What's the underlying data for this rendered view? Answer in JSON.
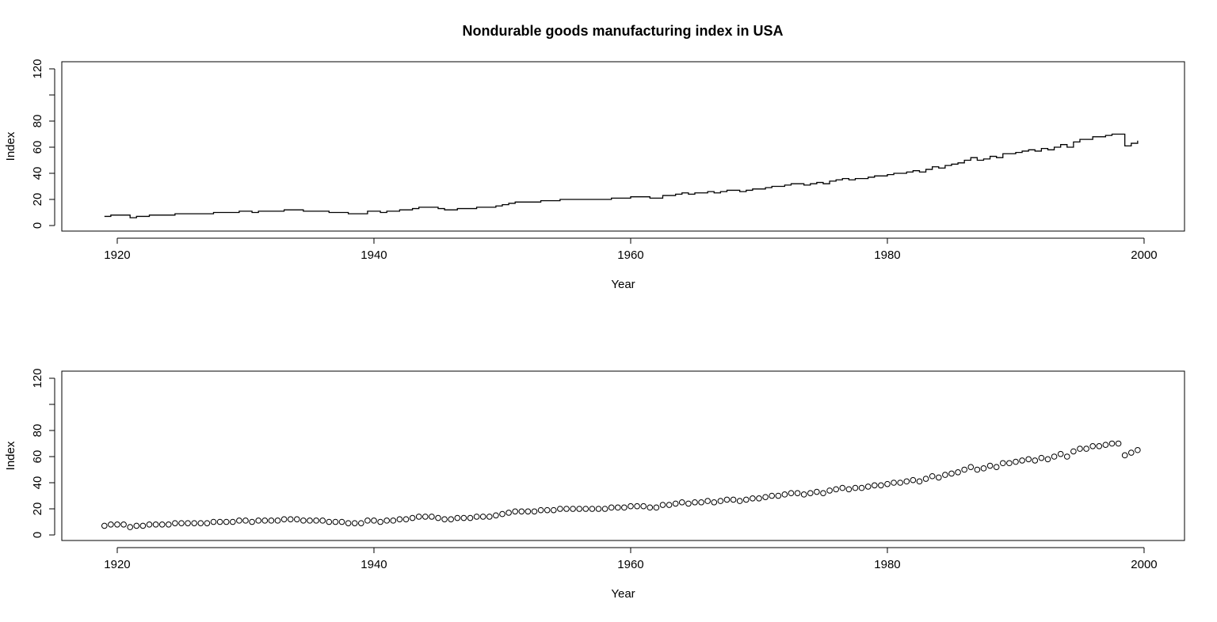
{
  "chart_data": [
    {
      "type": "line",
      "title": "Nondurable goods manufacturing index in USA",
      "x_label": "Year",
      "y_label": "Index",
      "color": "#000000",
      "xlim": [
        1915.68,
        2003.15
      ],
      "xticks": [
        1920,
        1940,
        1960,
        1980,
        2000
      ],
      "ylim": [
        -4.24,
        125.45
      ],
      "yticks": [
        0,
        20,
        40,
        60,
        80,
        {
          "value": 100,
          "label": null
        },
        120
      ],
      "x": [
        1919,
        1919.5,
        1920,
        1920.5,
        1921,
        1921.5,
        1922,
        1922.5,
        1923,
        1923.5,
        1924,
        1924.5,
        1925,
        1925.5,
        1926,
        1926.5,
        1927,
        1927.5,
        1928,
        1928.5,
        1929,
        1929.5,
        1930,
        1930.5,
        1931,
        1931.5,
        1932,
        1932.5,
        1933,
        1933.5,
        1934,
        1934.5,
        1935,
        1935.5,
        1936,
        1936.5,
        1937,
        1937.5,
        1938,
        1938.5,
        1939,
        1939.5,
        1940,
        1940.5,
        1941,
        1941.5,
        1942,
        1942.5,
        1943,
        1943.5,
        1944,
        1944.5,
        1945,
        1945.5,
        1946,
        1946.5,
        1947,
        1947.5,
        1948,
        1948.5,
        1949,
        1949.5,
        1950,
        1950.5,
        1951,
        1951.5,
        1952,
        1952.5,
        1953,
        1953.5,
        1954,
        1954.5,
        1955,
        1955.5,
        1956,
        1956.5,
        1957,
        1957.5,
        1958,
        1958.5,
        1959,
        1959.5,
        1960,
        1960.5,
        1961,
        1961.5,
        1962,
        1962.5,
        1963,
        1963.5,
        1964,
        1964.5,
        1965,
        1965.5,
        1966,
        1966.5,
        1967,
        1967.5,
        1968,
        1968.5,
        1969,
        1969.5,
        1970,
        1970.5,
        1971,
        1971.5,
        1972,
        1972.5,
        1973,
        1973.5,
        1974,
        1974.5,
        1975,
        1975.5,
        1976,
        1976.5,
        1977,
        1977.5,
        1978,
        1978.5,
        1979,
        1979.5,
        1980,
        1980.5,
        1981,
        1981.5,
        1982,
        1982.5,
        1983,
        1983.5,
        1984,
        1984.5,
        1985,
        1985.5,
        1986,
        1986.5,
        1987,
        1987.5,
        1988,
        1988.5,
        1989,
        1989.5,
        1990,
        1990.5,
        1991,
        1991.5,
        1992,
        1992.5,
        1993,
        1993.5,
        1994,
        1994.5,
        1995,
        1995.5,
        1996,
        1996.5,
        1997,
        1997.5,
        1998,
        1998.5,
        1999,
        1999.5
      ],
      "values": [
        7,
        8,
        8,
        8,
        6,
        7,
        7,
        8,
        8,
        8,
        8,
        9,
        9,
        9,
        9,
        9,
        9,
        10,
        10,
        10,
        10,
        11,
        11,
        10,
        11,
        11,
        11,
        11,
        12,
        12,
        12,
        11,
        11,
        11,
        11,
        10,
        10,
        10,
        9,
        9,
        9,
        11,
        11,
        10,
        11,
        11,
        12,
        12,
        13,
        14,
        14,
        14,
        13,
        12,
        12,
        13,
        13,
        13,
        14,
        14,
        14,
        15,
        16,
        17,
        18,
        18,
        18,
        18,
        19,
        19,
        19,
        20,
        20,
        20,
        20,
        20,
        20,
        20,
        20,
        21,
        21,
        21,
        22,
        22,
        22,
        21,
        21,
        23,
        23,
        24,
        25,
        24,
        25,
        25,
        26,
        25,
        26,
        27,
        27,
        26,
        27,
        28,
        28,
        29,
        30,
        30,
        31,
        32,
        32,
        31,
        32,
        33,
        32,
        34,
        35,
        36,
        35,
        36,
        36,
        37,
        38,
        38,
        39,
        40,
        40,
        41,
        42,
        41,
        43,
        45,
        44,
        46,
        47,
        48,
        50,
        52,
        50,
        51,
        53,
        52,
        55,
        55,
        56,
        57,
        58,
        57,
        59,
        58,
        60,
        62,
        60,
        64,
        66,
        66,
        68,
        68,
        69,
        70,
        70,
        61,
        63,
        65
      ]
    },
    {
      "type": "scatter",
      "x_label": "Year",
      "y_label": "Index",
      "color": "#000000",
      "xlim": [
        1915.68,
        2003.15
      ],
      "xticks": [
        1920,
        1940,
        1960,
        1980,
        2000
      ],
      "ylim": [
        -4.24,
        125.45
      ],
      "yticks": [
        0,
        20,
        40,
        60,
        80,
        {
          "value": 100,
          "label": null
        },
        120
      ],
      "x": [
        1919,
        1919.5,
        1920,
        1920.5,
        1921,
        1921.5,
        1922,
        1922.5,
        1923,
        1923.5,
        1924,
        1924.5,
        1925,
        1925.5,
        1926,
        1926.5,
        1927,
        1927.5,
        1928,
        1928.5,
        1929,
        1929.5,
        1930,
        1930.5,
        1931,
        1931.5,
        1932,
        1932.5,
        1933,
        1933.5,
        1934,
        1934.5,
        1935,
        1935.5,
        1936,
        1936.5,
        1937,
        1937.5,
        1938,
        1938.5,
        1939,
        1939.5,
        1940,
        1940.5,
        1941,
        1941.5,
        1942,
        1942.5,
        1943,
        1943.5,
        1944,
        1944.5,
        1945,
        1945.5,
        1946,
        1946.5,
        1947,
        1947.5,
        1948,
        1948.5,
        1949,
        1949.5,
        1950,
        1950.5,
        1951,
        1951.5,
        1952,
        1952.5,
        1953,
        1953.5,
        1954,
        1954.5,
        1955,
        1955.5,
        1956,
        1956.5,
        1957,
        1957.5,
        1958,
        1958.5,
        1959,
        1959.5,
        1960,
        1960.5,
        1961,
        1961.5,
        1962,
        1962.5,
        1963,
        1963.5,
        1964,
        1964.5,
        1965,
        1965.5,
        1966,
        1966.5,
        1967,
        1967.5,
        1968,
        1968.5,
        1969,
        1969.5,
        1970,
        1970.5,
        1971,
        1971.5,
        1972,
        1972.5,
        1973,
        1973.5,
        1974,
        1974.5,
        1975,
        1975.5,
        1976,
        1976.5,
        1977,
        1977.5,
        1978,
        1978.5,
        1979,
        1979.5,
        1980,
        1980.5,
        1981,
        1981.5,
        1982,
        1982.5,
        1983,
        1983.5,
        1984,
        1984.5,
        1985,
        1985.5,
        1986,
        1986.5,
        1987,
        1987.5,
        1988,
        1988.5,
        1989,
        1989.5,
        1990,
        1990.5,
        1991,
        1991.5,
        1992,
        1992.5,
        1993,
        1993.5,
        1994,
        1994.5,
        1995,
        1995.5,
        1996,
        1996.5,
        1997,
        1997.5,
        1998,
        1998.5,
        1999,
        1999.5
      ],
      "values": [
        7,
        8,
        8,
        8,
        6,
        7,
        7,
        8,
        8,
        8,
        8,
        9,
        9,
        9,
        9,
        9,
        9,
        10,
        10,
        10,
        10,
        11,
        11,
        10,
        11,
        11,
        11,
        11,
        12,
        12,
        12,
        11,
        11,
        11,
        11,
        10,
        10,
        10,
        9,
        9,
        9,
        11,
        11,
        10,
        11,
        11,
        12,
        12,
        13,
        14,
        14,
        14,
        13,
        12,
        12,
        13,
        13,
        13,
        14,
        14,
        14,
        15,
        16,
        17,
        18,
        18,
        18,
        18,
        19,
        19,
        19,
        20,
        20,
        20,
        20,
        20,
        20,
        20,
        20,
        21,
        21,
        21,
        22,
        22,
        22,
        21,
        21,
        23,
        23,
        24,
        25,
        24,
        25,
        25,
        26,
        25,
        26,
        27,
        27,
        26,
        27,
        28,
        28,
        29,
        30,
        30,
        31,
        32,
        32,
        31,
        32,
        33,
        32,
        34,
        35,
        36,
        35,
        36,
        36,
        37,
        38,
        38,
        39,
        40,
        40,
        41,
        42,
        41,
        43,
        45,
        44,
        46,
        47,
        48,
        50,
        52,
        50,
        51,
        53,
        52,
        55,
        55,
        56,
        57,
        58,
        57,
        59,
        58,
        60,
        62,
        60,
        64,
        66,
        66,
        68,
        68,
        69,
        70,
        70,
        61,
        63,
        65
      ]
    }
  ]
}
